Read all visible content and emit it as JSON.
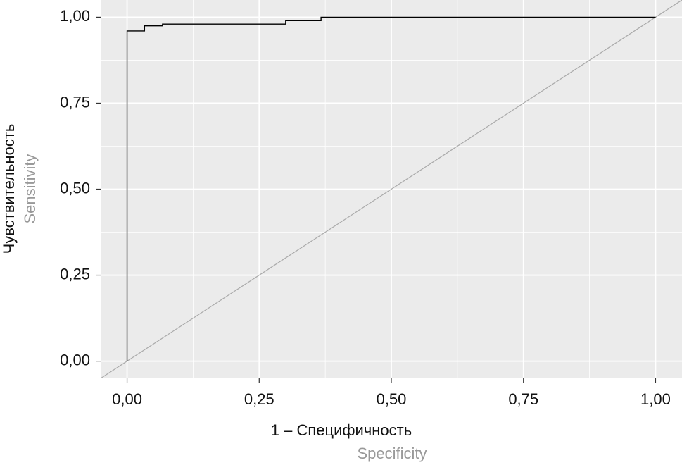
{
  "chart_data": {
    "type": "line",
    "x_title": "1 – Специфичность",
    "x_subtitle": "Specificity",
    "y_title": "Чувствительность",
    "y_subtitle": "Sensitivity",
    "series": [
      {
        "color": "#000000",
        "x": [
          0,
          0,
          0.033,
          0.033,
          0.067,
          0.067,
          0.3,
          0.3,
          0.367,
          0.367,
          1
        ],
        "values": [
          0,
          0.96,
          0.96,
          0.975,
          0.975,
          0.98,
          0.98,
          0.99,
          0.99,
          1,
          1
        ]
      }
    ],
    "xlim": [
      -0.05,
      1.05
    ],
    "ylim": [
      -0.05,
      1.05
    ],
    "xticks": [
      {
        "value": 0,
        "label": "0,00"
      },
      {
        "value": 0.25,
        "label": "0,25"
      },
      {
        "value": 0.5,
        "label": "0,50"
      },
      {
        "value": 0.75,
        "label": "0,75"
      },
      {
        "value": 1,
        "label": "1,00"
      }
    ],
    "yticks": [
      {
        "value": 0,
        "label": "0,00"
      },
      {
        "value": 0.25,
        "label": "0,25"
      },
      {
        "value": 0.5,
        "label": "0,50"
      },
      {
        "value": 0.75,
        "label": "0,75"
      },
      {
        "value": 1,
        "label": "1,00"
      }
    ],
    "grid": true,
    "minor_grid": true,
    "diagonal": true,
    "diagonal_color": "#aaaaaa",
    "panel_color": "#ebebeb"
  }
}
